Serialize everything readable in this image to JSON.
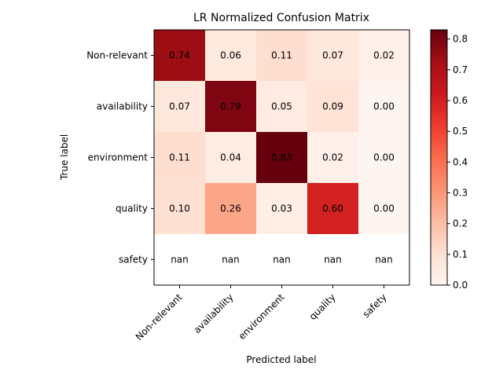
{
  "chart_data": {
    "type": "heatmap",
    "title": "LR Normalized Confusion Matrix",
    "xlabel": "Predicted label",
    "ylabel": "True label",
    "x_categories": [
      "Non-relevant",
      "availability",
      "environment",
      "quality",
      "safety"
    ],
    "y_categories": [
      "Non-relevant",
      "availability",
      "environment",
      "quality",
      "safety"
    ],
    "values": [
      [
        0.74,
        0.06,
        0.11,
        0.07,
        0.02
      ],
      [
        0.07,
        0.79,
        0.05,
        0.09,
        0.0
      ],
      [
        0.11,
        0.04,
        0.83,
        0.02,
        0.0
      ],
      [
        0.1,
        0.26,
        0.03,
        0.6,
        0.0
      ],
      [
        null,
        null,
        null,
        null,
        null
      ]
    ],
    "cell_labels": [
      [
        "0.74",
        "0.06",
        "0.11",
        "0.07",
        "0.02"
      ],
      [
        "0.07",
        "0.79",
        "0.05",
        "0.09",
        "0.00"
      ],
      [
        "0.11",
        "0.04",
        "0.83",
        "0.02",
        "0.00"
      ],
      [
        "0.10",
        "0.26",
        "0.03",
        "0.60",
        "0.00"
      ],
      [
        "nan",
        "nan",
        "nan",
        "nan",
        "nan"
      ]
    ],
    "colormap": "Reds",
    "colorbar": {
      "range": [
        0.0,
        0.83
      ],
      "ticks": [
        0.0,
        0.1,
        0.2,
        0.3,
        0.4,
        0.5,
        0.6,
        0.7,
        0.8
      ],
      "tick_labels": [
        "0.0",
        "0.1",
        "0.2",
        "0.3",
        "0.4",
        "0.5",
        "0.6",
        "0.7",
        "0.8"
      ]
    },
    "grid": false,
    "dark_text_color": "#000000"
  }
}
